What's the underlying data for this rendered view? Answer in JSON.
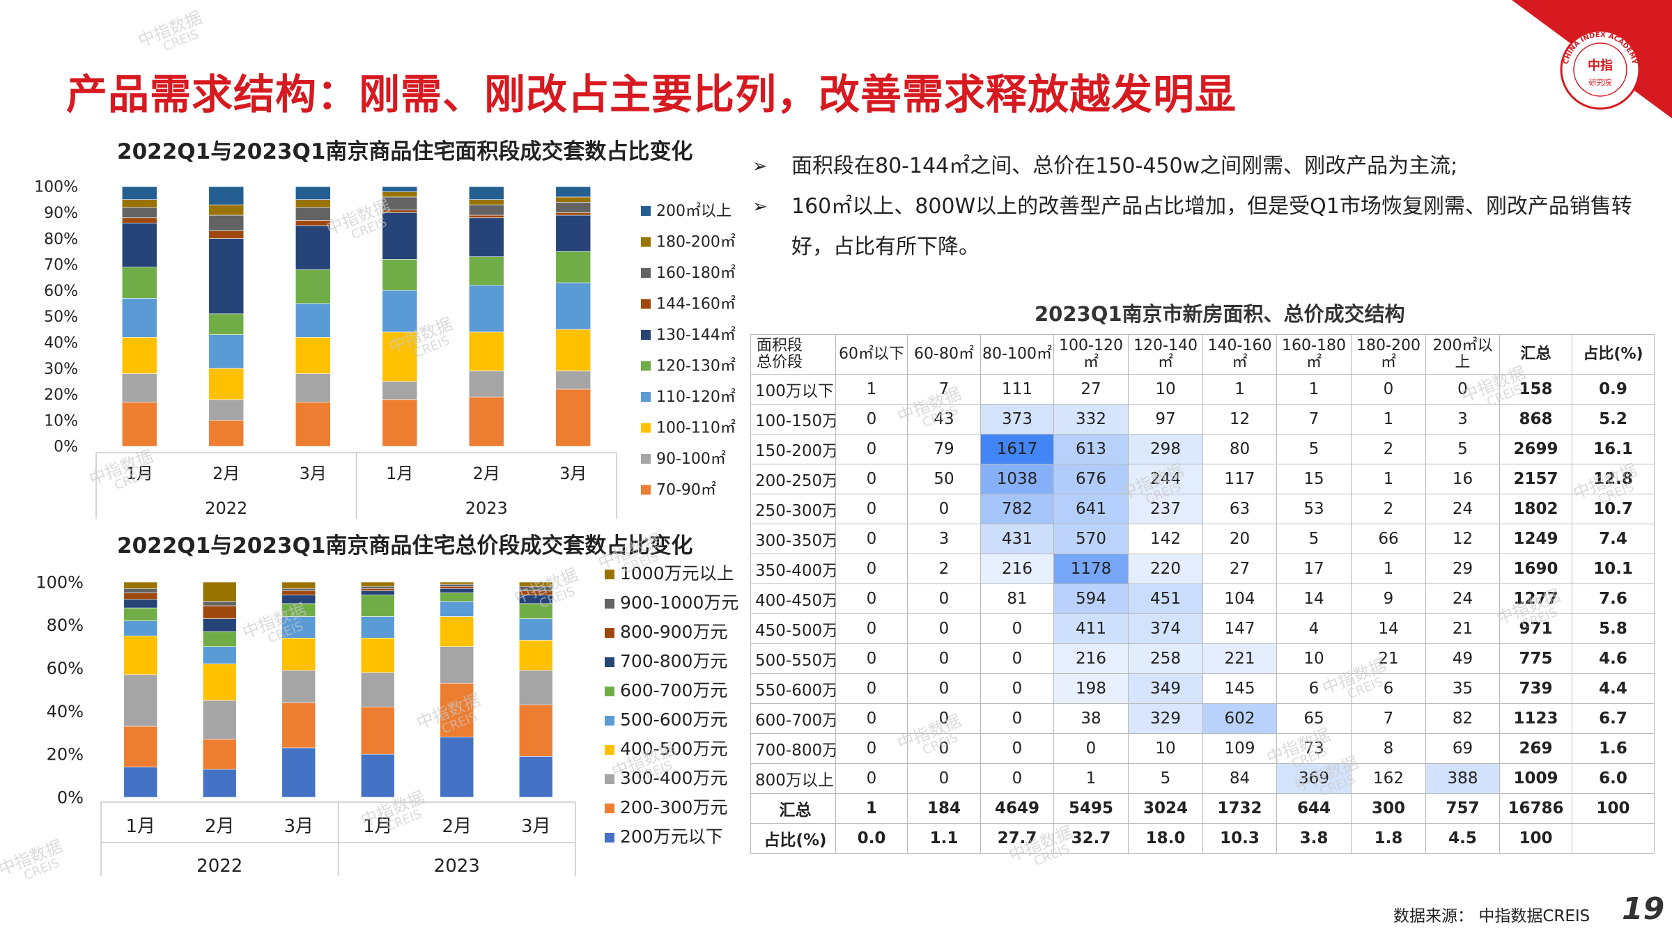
{
  "page": {
    "title": "产品需求结构：刚需、刚改占主要比列，改善需求释放越发明显",
    "source_label": "数据来源：",
    "source_name": "中指数据CREIS",
    "page_number": "19",
    "brand_color": "#d71920",
    "badge": {
      "ring_text": "CHINA INDEX ACADEMY",
      "center_text": "中指",
      "bottom_text": "研究院"
    },
    "watermark": {
      "line1": "中指数据",
      "line2": "CREIS"
    }
  },
  "bullets": [
    "面积段在80-144㎡之间、总价在150-450w之间刚需、刚改产品为主流;",
    "160㎡以上、800W以上的改善型产品占比增加，但是受Q1市场恢复刚需、刚改产品销售转好，占比有所下降。"
  ],
  "chart_data": [
    {
      "type": "bar",
      "stacked": true,
      "title": "2022Q1与2023Q1南京商品住宅面积段成交套数占比变化",
      "categories": [
        "1月",
        "2月",
        "3月",
        "1月",
        "2月",
        "3月"
      ],
      "groups": [
        {
          "label": "2022",
          "span": 3
        },
        {
          "label": "2023",
          "span": 3
        }
      ],
      "yticks": [
        "0%",
        "10%",
        "20%",
        "30%",
        "40%",
        "50%",
        "60%",
        "70%",
        "80%",
        "90%",
        "100%"
      ],
      "ylim": [
        0,
        100
      ],
      "legend_position": "right",
      "series": [
        {
          "name": "70-90㎡",
          "color": "#ed7d31",
          "values": [
            17,
            10,
            17,
            18,
            19,
            22
          ]
        },
        {
          "name": "90-100㎡",
          "color": "#a5a5a5",
          "values": [
            11,
            8,
            11,
            7,
            10,
            7
          ]
        },
        {
          "name": "100-110㎡",
          "color": "#ffc000",
          "values": [
            14,
            12,
            14,
            19,
            15,
            16
          ]
        },
        {
          "name": "110-120㎡",
          "color": "#5b9bd5",
          "values": [
            15,
            13,
            13,
            16,
            18,
            18
          ]
        },
        {
          "name": "120-130㎡",
          "color": "#70ad47",
          "values": [
            12,
            8,
            13,
            12,
            11,
            12
          ]
        },
        {
          "name": "130-144㎡",
          "color": "#264478",
          "values": [
            17,
            29,
            17,
            18,
            15,
            14
          ]
        },
        {
          "name": "144-160㎡",
          "color": "#9e480e",
          "values": [
            2,
            3,
            2,
            1,
            1,
            1
          ]
        },
        {
          "name": "160-180㎡",
          "color": "#636363",
          "values": [
            4,
            6,
            5,
            5,
            4,
            4
          ]
        },
        {
          "name": "180-200㎡",
          "color": "#997300",
          "values": [
            3,
            4,
            3,
            2,
            2,
            2
          ]
        },
        {
          "name": "200㎡以上",
          "color": "#255e91",
          "values": [
            5,
            7,
            5,
            2,
            5,
            4
          ]
        }
      ]
    },
    {
      "type": "bar",
      "stacked": true,
      "title": "2022Q1与2023Q1南京商品住宅总价段成交套数占比变化",
      "categories": [
        "1月",
        "2月",
        "3月",
        "1月",
        "2月",
        "3月"
      ],
      "groups": [
        {
          "label": "2022",
          "span": 3
        },
        {
          "label": "2023",
          "span": 3
        }
      ],
      "yticks": [
        "0%",
        "20%",
        "40%",
        "60%",
        "80%",
        "100%"
      ],
      "ylim": [
        0,
        100
      ],
      "legend_position": "right",
      "series": [
        {
          "name": "200万元以下",
          "color": "#4472c4",
          "values": [
            14,
            13,
            23,
            20,
            28,
            19
          ]
        },
        {
          "name": "200-300万元",
          "color": "#ed7d31",
          "values": [
            19,
            14,
            21,
            22,
            25,
            24
          ]
        },
        {
          "name": "300-400万元",
          "color": "#a5a5a5",
          "values": [
            24,
            18,
            15,
            16,
            17,
            16
          ]
        },
        {
          "name": "400-500万元",
          "color": "#ffc000",
          "values": [
            18,
            17,
            15,
            16,
            14,
            14
          ]
        },
        {
          "name": "500-600万元",
          "color": "#5b9bd5",
          "values": [
            7,
            8,
            10,
            10,
            7,
            10
          ]
        },
        {
          "name": "600-700万元",
          "color": "#70ad47",
          "values": [
            6,
            7,
            6,
            10,
            4,
            7
          ]
        },
        {
          "name": "700-800万元",
          "color": "#264478",
          "values": [
            4,
            6,
            4,
            2,
            2,
            4
          ]
        },
        {
          "name": "800-900万元",
          "color": "#9e480e",
          "values": [
            3,
            6,
            2,
            1,
            1,
            2
          ]
        },
        {
          "name": "900-1000万元",
          "color": "#636363",
          "values": [
            2,
            2,
            1,
            1,
            1,
            2
          ]
        },
        {
          "name": "1000万元以上",
          "color": "#997300",
          "values": [
            3,
            9,
            3,
            2,
            1,
            2
          ]
        }
      ]
    }
  ],
  "table": {
    "title": "2023Q1南京市新房面积、总价成交结构",
    "corner_top": "面积段",
    "corner_bottom": "总价段",
    "columns": [
      "60㎡以下",
      "60-80㎡",
      "80-100㎡",
      "100-120㎡",
      "120-140㎡",
      "140-160㎡",
      "160-180㎡",
      "180-200㎡",
      "200㎡以上",
      "汇总",
      "占比(%)"
    ],
    "rows": [
      {
        "label": "100万以下",
        "cells": [
          "1",
          "7",
          "111",
          "27",
          "10",
          "1",
          "1",
          "0",
          "0",
          "158",
          "0.9"
        ]
      },
      {
        "label": "100-150万",
        "cells": [
          "0",
          "43",
          "373",
          "332",
          "97",
          "12",
          "7",
          "1",
          "3",
          "868",
          "5.2"
        ]
      },
      {
        "label": "150-200万",
        "cells": [
          "0",
          "79",
          "1617",
          "613",
          "298",
          "80",
          "5",
          "2",
          "5",
          "2699",
          "16.1"
        ]
      },
      {
        "label": "200-250万",
        "cells": [
          "0",
          "50",
          "1038",
          "676",
          "244",
          "117",
          "15",
          "1",
          "16",
          "2157",
          "12.8"
        ]
      },
      {
        "label": "250-300万",
        "cells": [
          "0",
          "0",
          "782",
          "641",
          "237",
          "63",
          "53",
          "2",
          "24",
          "1802",
          "10.7"
        ]
      },
      {
        "label": "300-350万",
        "cells": [
          "0",
          "3",
          "431",
          "570",
          "142",
          "20",
          "5",
          "66",
          "12",
          "1249",
          "7.4"
        ]
      },
      {
        "label": "350-400万",
        "cells": [
          "0",
          "2",
          "216",
          "1178",
          "220",
          "27",
          "17",
          "1",
          "29",
          "1690",
          "10.1"
        ]
      },
      {
        "label": "400-450万",
        "cells": [
          "0",
          "0",
          "81",
          "594",
          "451",
          "104",
          "14",
          "9",
          "24",
          "1277",
          "7.6"
        ]
      },
      {
        "label": "450-500万",
        "cells": [
          "0",
          "0",
          "0",
          "411",
          "374",
          "147",
          "4",
          "14",
          "21",
          "971",
          "5.8"
        ]
      },
      {
        "label": "500-550万",
        "cells": [
          "0",
          "0",
          "0",
          "216",
          "258",
          "221",
          "10",
          "21",
          "49",
          "775",
          "4.6"
        ]
      },
      {
        "label": "550-600万",
        "cells": [
          "0",
          "0",
          "0",
          "198",
          "349",
          "145",
          "6",
          "6",
          "35",
          "739",
          "4.4"
        ]
      },
      {
        "label": "600-700万",
        "cells": [
          "0",
          "0",
          "0",
          "38",
          "329",
          "602",
          "65",
          "7",
          "82",
          "1123",
          "6.7"
        ]
      },
      {
        "label": "700-800万",
        "cells": [
          "0",
          "0",
          "0",
          "0",
          "10",
          "109",
          "73",
          "8",
          "69",
          "269",
          "1.6"
        ]
      },
      {
        "label": "800万以上",
        "cells": [
          "0",
          "0",
          "0",
          "1",
          "5",
          "84",
          "369",
          "162",
          "388",
          "1009",
          "6.0"
        ]
      }
    ],
    "summary_rows": [
      {
        "label": "汇总",
        "cells": [
          "1",
          "184",
          "4649",
          "5495",
          "3024",
          "1732",
          "644",
          "300",
          "757",
          "16786",
          "100"
        ]
      },
      {
        "label": "占比(%)",
        "cells": [
          "0.0",
          "1.1",
          "27.7",
          "32.7",
          "18.0",
          "10.3",
          "3.8",
          "1.8",
          "4.5",
          "100",
          ""
        ]
      }
    ]
  }
}
